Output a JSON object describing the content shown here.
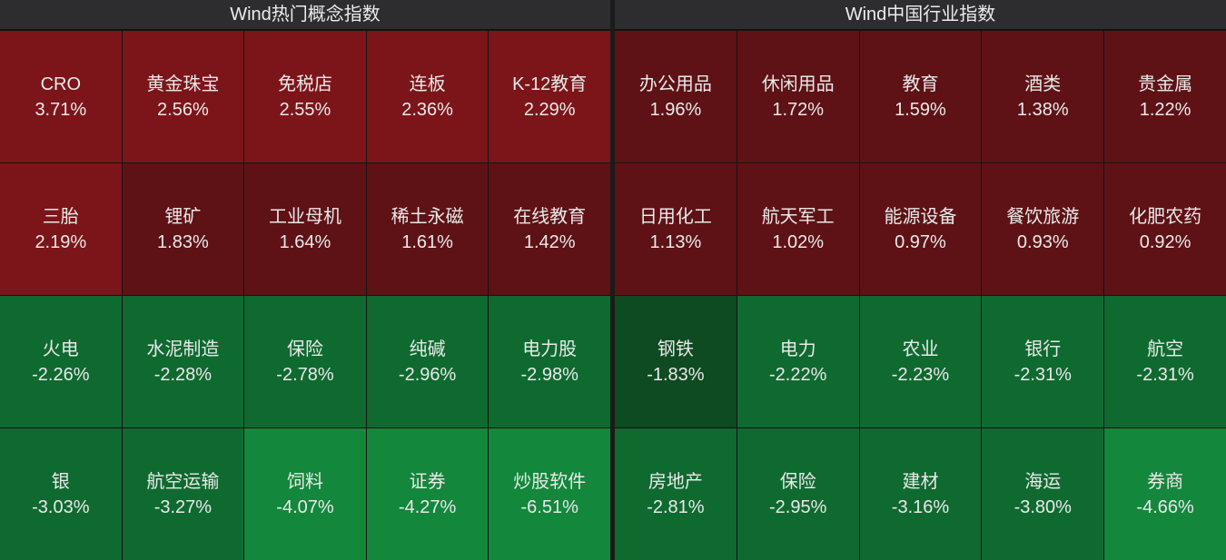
{
  "panels": [
    {
      "title": "Wind热门概念指数",
      "cells": [
        {
          "name": "CRO",
          "pct": "3.71%",
          "color": "#7c1519"
        },
        {
          "name": "黄金珠宝",
          "pct": "2.56%",
          "color": "#7c1519"
        },
        {
          "name": "免税店",
          "pct": "2.55%",
          "color": "#7c1519"
        },
        {
          "name": "连板",
          "pct": "2.36%",
          "color": "#7c1519"
        },
        {
          "name": "K-12教育",
          "pct": "2.29%",
          "color": "#7c1519"
        },
        {
          "name": "三胎",
          "pct": "2.19%",
          "color": "#7c1519"
        },
        {
          "name": "锂矿",
          "pct": "1.83%",
          "color": "#5e1216"
        },
        {
          "name": "工业母机",
          "pct": "1.64%",
          "color": "#5e1216"
        },
        {
          "name": "稀土永磁",
          "pct": "1.61%",
          "color": "#5e1216"
        },
        {
          "name": "在线教育",
          "pct": "1.42%",
          "color": "#5e1216"
        },
        {
          "name": "火电",
          "pct": "-2.26%",
          "color": "#0f6a30"
        },
        {
          "name": "水泥制造",
          "pct": "-2.28%",
          "color": "#0f6a30"
        },
        {
          "name": "保险",
          "pct": "-2.78%",
          "color": "#0f6a30"
        },
        {
          "name": "纯碱",
          "pct": "-2.96%",
          "color": "#0f6a30"
        },
        {
          "name": "电力股",
          "pct": "-2.98%",
          "color": "#0f6a30"
        },
        {
          "name": "银",
          "pct": "-3.03%",
          "color": "#0f6a30"
        },
        {
          "name": "航空运输",
          "pct": "-3.27%",
          "color": "#0f6a30"
        },
        {
          "name": "饲料",
          "pct": "-4.07%",
          "color": "#13873c"
        },
        {
          "name": "证券",
          "pct": "-4.27%",
          "color": "#13873c"
        },
        {
          "name": "炒股软件",
          "pct": "-6.51%",
          "color": "#13873c"
        }
      ]
    },
    {
      "title": "Wind中国行业指数",
      "cells": [
        {
          "name": "办公用品",
          "pct": "1.96%",
          "color": "#5e1216"
        },
        {
          "name": "休闲用品",
          "pct": "1.72%",
          "color": "#5e1216"
        },
        {
          "name": "教育",
          "pct": "1.59%",
          "color": "#5e1216"
        },
        {
          "name": "酒类",
          "pct": "1.38%",
          "color": "#5e1216"
        },
        {
          "name": "贵金属",
          "pct": "1.22%",
          "color": "#5e1216"
        },
        {
          "name": "日用化工",
          "pct": "1.13%",
          "color": "#5e1216"
        },
        {
          "name": "航天军工",
          "pct": "1.02%",
          "color": "#5e1216"
        },
        {
          "name": "能源设备",
          "pct": "0.97%",
          "color": "#5e1216"
        },
        {
          "name": "餐饮旅游",
          "pct": "0.93%",
          "color": "#5e1216"
        },
        {
          "name": "化肥农药",
          "pct": "0.92%",
          "color": "#5e1216"
        },
        {
          "name": "钢铁",
          "pct": "-1.83%",
          "color": "#0e4a22"
        },
        {
          "name": "电力",
          "pct": "-2.22%",
          "color": "#0f6a30"
        },
        {
          "name": "农业",
          "pct": "-2.23%",
          "color": "#0f6a30"
        },
        {
          "name": "银行",
          "pct": "-2.31%",
          "color": "#0f6a30"
        },
        {
          "name": "航空",
          "pct": "-2.31%",
          "color": "#0f6a30"
        },
        {
          "name": "房地产",
          "pct": "-2.81%",
          "color": "#0f6a30"
        },
        {
          "name": "保险",
          "pct": "-2.95%",
          "color": "#0f6a30"
        },
        {
          "name": "建材",
          "pct": "-3.16%",
          "color": "#0f6a30"
        },
        {
          "name": "海运",
          "pct": "-3.80%",
          "color": "#0f6a30"
        },
        {
          "name": "券商",
          "pct": "-4.66%",
          "color": "#13873c"
        }
      ]
    }
  ]
}
